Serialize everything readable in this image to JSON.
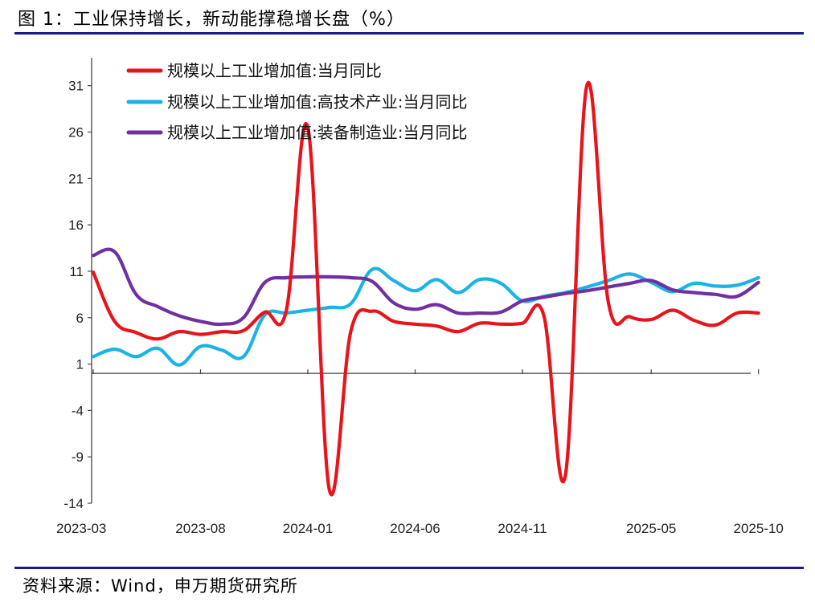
{
  "figure": {
    "title": "图 1：工业保持增长，新动能撑稳增长盘（%）",
    "source": "资料来源：Wind，申万期货研究所"
  },
  "chart_data": {
    "type": "line",
    "title": "工业保持增长，新动能撑稳增长盘（%）",
    "xlabel": "",
    "ylabel": "%",
    "ylim": [
      -14,
      34
    ],
    "yticks": [
      31,
      26,
      21,
      16,
      11,
      6,
      1,
      -4,
      -9,
      -14
    ],
    "xticks": [
      "2023-03",
      "2023-08",
      "2024-01",
      "2024-06",
      "2024-11",
      "2025-05",
      "2025-10"
    ],
    "x": [
      "2023-03",
      "2023-04",
      "2023-05",
      "2023-06",
      "2023-07",
      "2023-08",
      "2023-09",
      "2023-10",
      "2023-11",
      "2023-12",
      "2024-01",
      "2024-02",
      "2024-03",
      "2024-04",
      "2024-05",
      "2024-06",
      "2024-07",
      "2024-08",
      "2024-09",
      "2024-10",
      "2024-11",
      "2024-12",
      "2025-01",
      "2025-02",
      "2025-03",
      "2025-04",
      "2025-05",
      "2025-06",
      "2025-07",
      "2025-08",
      "2025-09",
      "2025-10"
    ],
    "legend_position": "top-left",
    "series": [
      {
        "name": "规模以上工业增加值:当月同比",
        "color": "#e8141b",
        "values": [
          10.9,
          5.6,
          4.4,
          3.7,
          4.5,
          4.2,
          4.5,
          4.6,
          6.6,
          6.8,
          26.5,
          -12.5,
          4.5,
          6.7,
          5.6,
          5.3,
          5.1,
          4.5,
          5.4,
          5.3,
          5.4,
          6.2,
          -11.0,
          31.0,
          7.7,
          6.1,
          5.8,
          6.8,
          5.7,
          5.2,
          6.5,
          6.5
        ]
      },
      {
        "name": "规模以上工业增加值:高技术产业:当月同比",
        "color": "#1ab3e6",
        "values": [
          1.8,
          2.6,
          1.8,
          2.7,
          0.9,
          2.9,
          2.5,
          1.8,
          6.3,
          6.5,
          6.8,
          7.1,
          7.5,
          11.2,
          10.0,
          8.9,
          10.1,
          8.7,
          10.1,
          9.7,
          7.8,
          8.3,
          8.7,
          9.3,
          10.0,
          10.7,
          9.8,
          8.8,
          9.7,
          9.4,
          9.5,
          10.3
        ]
      },
      {
        "name": "规模以上工业增加值:装备制造业:当月同比",
        "color": "#7030a0",
        "values": [
          12.7,
          13.1,
          8.5,
          7.2,
          6.2,
          5.6,
          5.3,
          6.0,
          9.8,
          10.3,
          10.4,
          10.4,
          10.3,
          9.9,
          7.6,
          6.9,
          7.4,
          6.5,
          6.5,
          6.6,
          7.8,
          8.2,
          8.6,
          8.9,
          9.3,
          9.7,
          10.0,
          9.0,
          8.7,
          8.5,
          8.3,
          9.8
        ]
      }
    ]
  }
}
